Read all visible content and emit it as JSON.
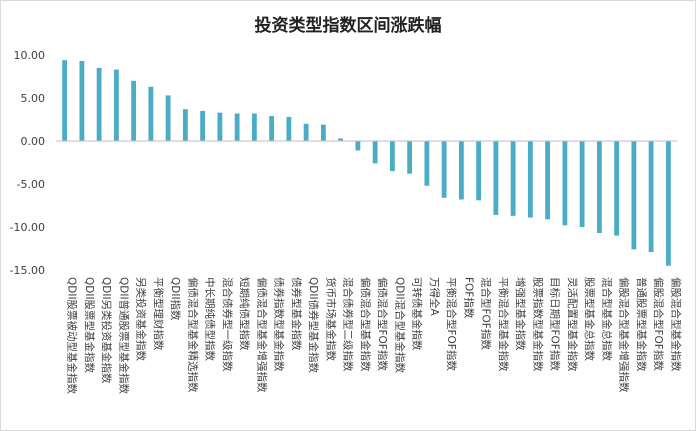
{
  "chart_data": {
    "type": "bar",
    "title": "投资类型指数区间涨跌幅",
    "xlabel": "",
    "ylabel": "",
    "ylim": [
      -15,
      10
    ],
    "yticks": [
      10,
      5,
      0,
      -5,
      -10,
      -15
    ],
    "ytick_labels": [
      "10.00",
      "5.00",
      "0.00",
      "-5.00",
      "-10.00",
      "-15.00"
    ],
    "grid": false,
    "legend": "none",
    "bar_color": "#4bacc6",
    "categories": [
      "QDII股票被动型基金指数",
      "QDII股票型基金指数",
      "QDII另类投资基金指数",
      "QDII普通股票型基金指数",
      "另类投资基金指数",
      "平衡型理财指数",
      "QDII指数",
      "偏债混合型基金精选指数",
      "中长期纯债型指数",
      "混合债券型一级指数",
      "短期纯债型指数",
      "偏债混合型基金增强指数",
      "债券指数型基金指数",
      "债券型基金指数",
      "QDII债券型基金指数",
      "货币市场基金指数",
      "混合债券型二级指数",
      "偏债混合型基金指数",
      "偏债混合型FOF指数",
      "QDII混合型基金指数",
      "可转债基金指数",
      "万得全A",
      "平衡混合型FOF指数",
      "FOF指数",
      "混合型FOF指数",
      "平衡混合型基金指数",
      "增强型基金指数",
      "股票指数型基金指数",
      "目标日期型FOF指数",
      "灵活配置型基金指数",
      "股票型基金总指数",
      "混合型基金总指数",
      "偏股混合型基金增强指数",
      "普通股票型基金指数",
      "偏股混合型FOF指数",
      "偏股混合型基金指数"
    ],
    "values": [
      9.4,
      9.3,
      8.5,
      8.3,
      7.0,
      6.3,
      5.3,
      3.7,
      3.5,
      3.3,
      3.2,
      3.2,
      2.9,
      2.8,
      2.0,
      1.9,
      0.3,
      -1.1,
      -2.6,
      -3.5,
      -3.8,
      -5.2,
      -6.6,
      -6.8,
      -6.9,
      -8.6,
      -8.7,
      -8.9,
      -9.1,
      -9.8,
      -10.0,
      -10.7,
      -11.0,
      -12.6,
      -12.9,
      -14.5
    ]
  }
}
